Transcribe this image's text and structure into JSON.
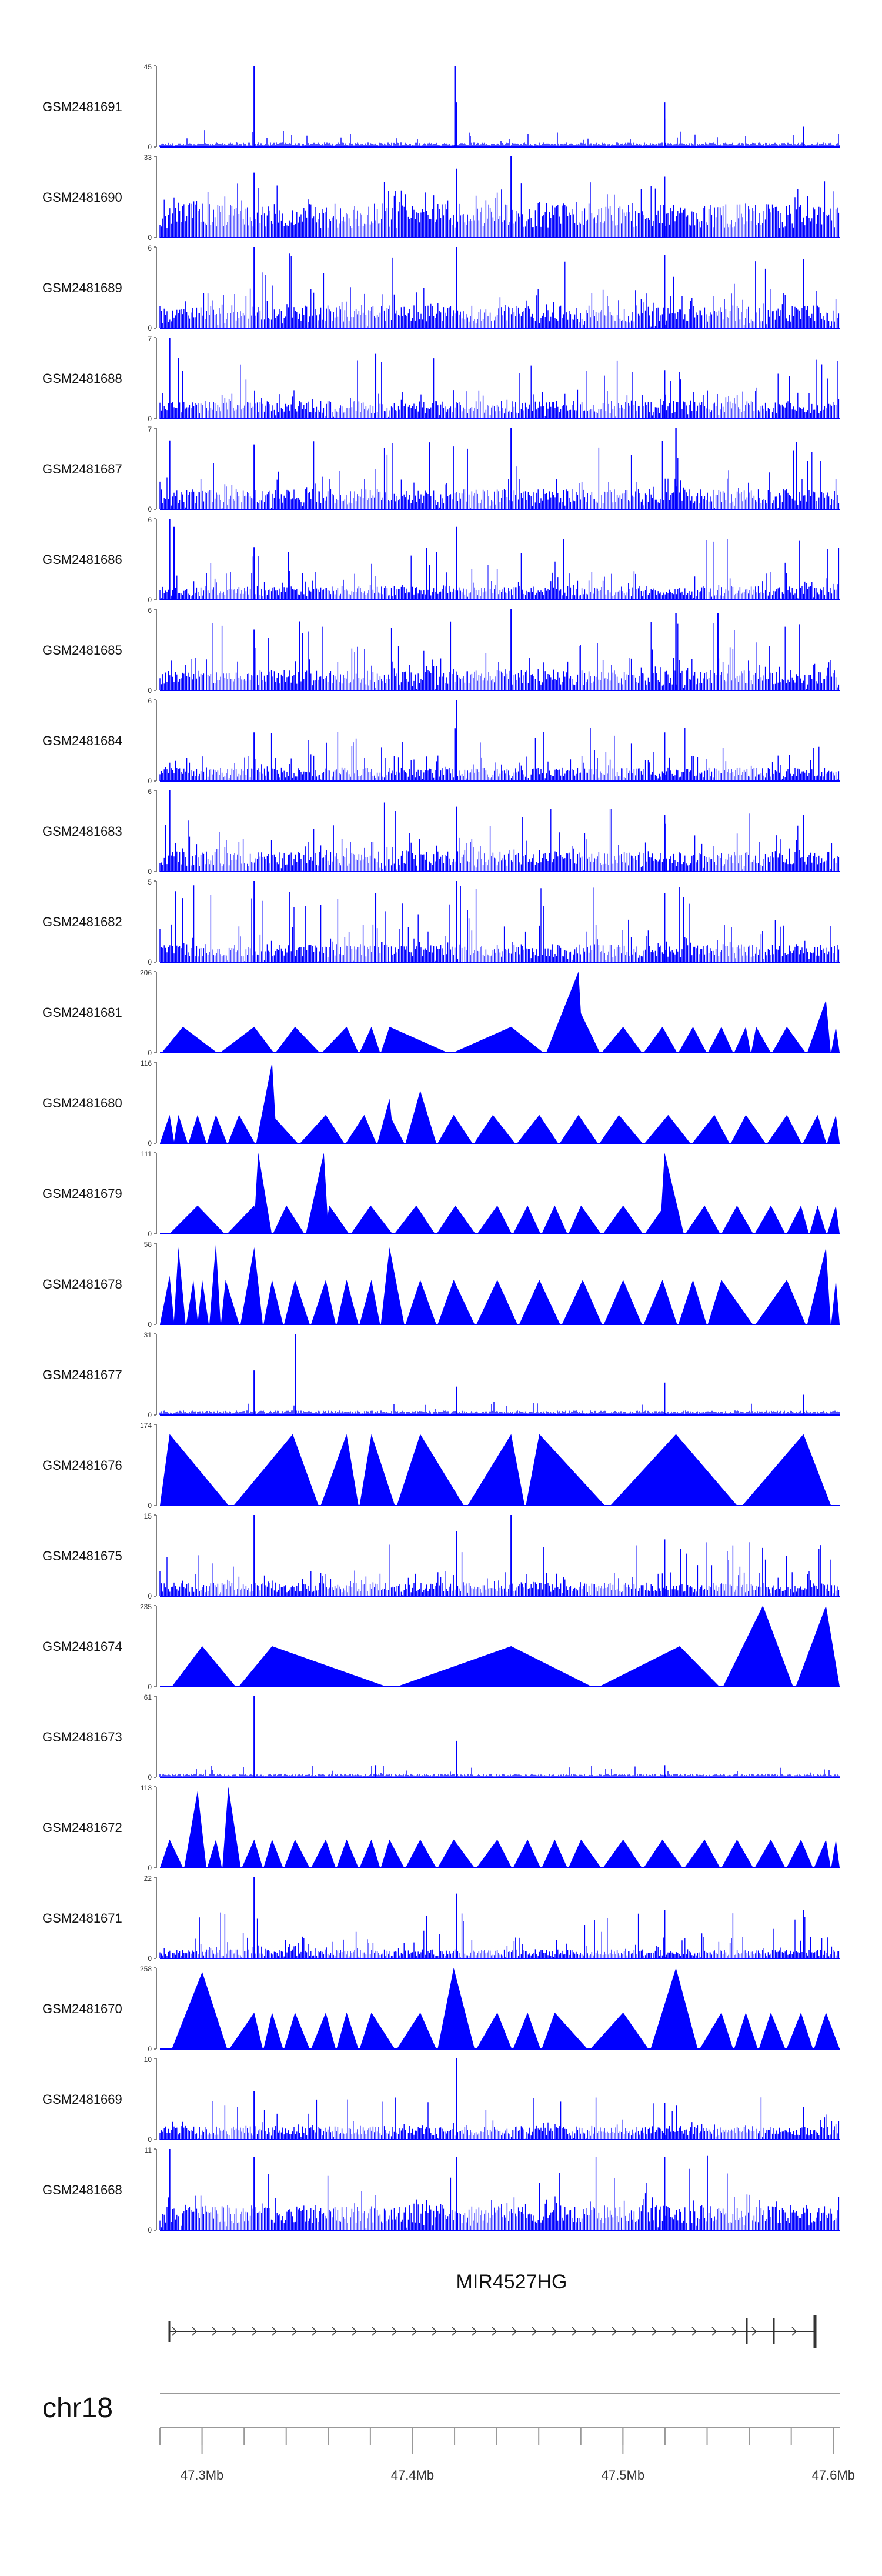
{
  "chart_data": {
    "type": "area",
    "title": "",
    "chromosome": "chr18",
    "gene": "MIR4527HG",
    "xlim": [
      47.28,
      47.603
    ],
    "xlabel": "",
    "x_tick_labels": [
      "47.3Mb",
      "47.4Mb",
      "47.5Mb",
      "47.6Mb"
    ],
    "x_ticks": [
      47.3,
      47.4,
      47.5,
      47.6
    ],
    "fill_color": "#0000ff",
    "tracks": [
      {
        "name": "GSM2481691",
        "ymax": "45",
        "ymax_value": 45,
        "style": "sparse",
        "background": 0.04,
        "noise": 0.1,
        "peaks": [
          [
            47.3248,
            1.0
          ],
          [
            47.4202,
            1.0
          ],
          [
            47.4209,
            0.55
          ],
          [
            47.5198,
            0.55
          ],
          [
            47.5198,
            0.35
          ],
          [
            47.5858,
            0.25
          ]
        ]
      },
      {
        "name": "GSM2481690",
        "ymax": "33",
        "ymax_value": 33,
        "style": "spiky",
        "background": 0.3,
        "noise": 0.45,
        "peaks": [
          [
            47.4469,
            1.0
          ],
          [
            47.4209,
            0.85
          ],
          [
            47.3248,
            0.8
          ],
          [
            47.5198,
            0.75
          ]
        ]
      },
      {
        "name": "GSM2481689",
        "ymax": "6",
        "ymax_value": 6,
        "style": "dense",
        "background": 0.2,
        "noise": 0.5,
        "peaks": [
          [
            47.3248,
            1.0
          ],
          [
            47.4209,
            1.0
          ],
          [
            47.5198,
            0.9
          ],
          [
            47.5858,
            0.85
          ]
        ]
      },
      {
        "name": "GSM2481688",
        "ymax": "7",
        "ymax_value": 7,
        "style": "dense",
        "background": 0.16,
        "noise": 0.4,
        "peaks": [
          [
            47.2846,
            1.0
          ],
          [
            47.2888,
            0.75
          ],
          [
            47.3825,
            0.8
          ],
          [
            47.5198,
            0.6
          ]
        ]
      },
      {
        "name": "GSM2481687",
        "ymax": "7",
        "ymax_value": 7,
        "style": "dense",
        "background": 0.18,
        "noise": 0.45,
        "peaks": [
          [
            47.4469,
            1.0
          ],
          [
            47.5252,
            1.0
          ],
          [
            47.2846,
            0.85
          ],
          [
            47.3248,
            0.8
          ]
        ]
      },
      {
        "name": "GSM2481686",
        "ymax": "6",
        "ymax_value": 6,
        "style": "dense",
        "background": 0.12,
        "noise": 0.4,
        "peaks": [
          [
            47.2846,
            1.0
          ],
          [
            47.2867,
            0.9
          ],
          [
            47.4209,
            0.9
          ],
          [
            47.3248,
            0.65
          ]
        ]
      },
      {
        "name": "GSM2481685",
        "ymax": "6",
        "ymax_value": 6,
        "style": "dense",
        "background": 0.18,
        "noise": 0.45,
        "peaks": [
          [
            47.4469,
            1.0
          ],
          [
            47.5252,
            0.95
          ],
          [
            47.5451,
            0.95
          ],
          [
            47.3248,
            0.75
          ]
        ]
      },
      {
        "name": "GSM2481684",
        "ymax": "6",
        "ymax_value": 6,
        "style": "dense",
        "background": 0.12,
        "noise": 0.35,
        "peaks": [
          [
            47.4209,
            1.0
          ],
          [
            47.4202,
            0.65
          ],
          [
            47.3248,
            0.6
          ],
          [
            47.5198,
            0.6
          ]
        ]
      },
      {
        "name": "GSM2481683",
        "ymax": "6",
        "ymax_value": 6,
        "style": "dense",
        "background": 0.18,
        "noise": 0.45,
        "peaks": [
          [
            47.2846,
            1.0
          ],
          [
            47.4209,
            0.8
          ],
          [
            47.5198,
            0.7
          ],
          [
            47.5858,
            0.7
          ]
        ]
      },
      {
        "name": "GSM2481682",
        "ymax": "5",
        "ymax_value": 5,
        "style": "dense",
        "background": 0.16,
        "noise": 0.55,
        "peaks": [
          [
            47.3248,
            1.0
          ],
          [
            47.4209,
            1.0
          ],
          [
            47.3825,
            0.85
          ],
          [
            47.5198,
            0.85
          ]
        ]
      },
      {
        "name": "GSM2481681",
        "ymax": "206",
        "ymax_value": 206,
        "style": "triangle",
        "peaks": [
          [
            47.2909,
            0.32
          ],
          [
            47.3248,
            0.32
          ],
          [
            47.3442,
            0.32
          ],
          [
            47.3687,
            0.32
          ],
          [
            47.3805,
            0.32
          ],
          [
            47.3891,
            0.32
          ],
          [
            47.4469,
            0.32
          ],
          [
            47.4789,
            1.0
          ],
          [
            47.4789,
            0.55
          ],
          [
            47.5001,
            0.32
          ],
          [
            47.5188,
            0.32
          ],
          [
            47.5333,
            0.32
          ],
          [
            47.5468,
            0.32
          ],
          [
            47.5584,
            0.32
          ],
          [
            47.5633,
            0.32
          ],
          [
            47.5779,
            0.32
          ],
          [
            47.5965,
            0.65
          ],
          [
            47.6012,
            0.32
          ]
        ]
      },
      {
        "name": "GSM2481680",
        "ymax": "116",
        "ymax_value": 116,
        "style": "triangle",
        "peaks": [
          [
            47.2846,
            0.35
          ],
          [
            47.2888,
            0.35
          ],
          [
            47.2979,
            0.35
          ],
          [
            47.3066,
            0.35
          ],
          [
            47.3176,
            0.35
          ],
          [
            47.3333,
            1.0
          ],
          [
            47.3333,
            0.35
          ],
          [
            47.3588,
            0.35
          ],
          [
            47.3771,
            0.35
          ],
          [
            47.3891,
            0.55
          ],
          [
            47.3891,
            0.35
          ],
          [
            47.4037,
            0.65
          ],
          [
            47.4196,
            0.35
          ],
          [
            47.4382,
            0.35
          ],
          [
            47.4603,
            0.35
          ],
          [
            47.4789,
            0.35
          ],
          [
            47.4981,
            0.35
          ],
          [
            47.5215,
            0.35
          ],
          [
            47.5435,
            0.35
          ],
          [
            47.5584,
            0.35
          ],
          [
            47.5779,
            0.35
          ],
          [
            47.5925,
            0.35
          ],
          [
            47.6012,
            0.35
          ]
        ]
      },
      {
        "name": "GSM2481679",
        "ymax": "111",
        "ymax_value": 111,
        "style": "triangle",
        "peaks": [
          [
            47.2979,
            0.35
          ],
          [
            47.3248,
            0.35
          ],
          [
            47.3267,
            1.0
          ],
          [
            47.3401,
            0.35
          ],
          [
            47.3579,
            1.0
          ],
          [
            47.3605,
            0.35
          ],
          [
            47.3801,
            0.35
          ],
          [
            47.4018,
            0.35
          ],
          [
            47.4204,
            0.35
          ],
          [
            47.4403,
            0.35
          ],
          [
            47.4547,
            0.35
          ],
          [
            47.4676,
            0.35
          ],
          [
            47.4801,
            0.35
          ],
          [
            47.5001,
            0.35
          ],
          [
            47.5198,
            0.35
          ],
          [
            47.5198,
            1.0
          ],
          [
            47.5388,
            0.35
          ],
          [
            47.5542,
            0.35
          ],
          [
            47.5703,
            0.35
          ],
          [
            47.5846,
            0.35
          ],
          [
            47.5925,
            0.35
          ],
          [
            47.6012,
            0.35
          ]
        ]
      },
      {
        "name": "GSM2481678",
        "ymax": "58",
        "ymax_value": 58,
        "style": "triangle",
        "peaks": [
          [
            47.2846,
            0.6
          ],
          [
            47.2888,
            0.95
          ],
          [
            47.2959,
            0.55
          ],
          [
            47.3001,
            0.55
          ],
          [
            47.3066,
            1.0
          ],
          [
            47.3112,
            0.55
          ],
          [
            47.3248,
            0.95
          ],
          [
            47.3333,
            0.55
          ],
          [
            47.3442,
            0.55
          ],
          [
            47.3588,
            0.55
          ],
          [
            47.3687,
            0.55
          ],
          [
            47.3805,
            0.55
          ],
          [
            47.3891,
            0.95
          ],
          [
            47.4037,
            0.55
          ],
          [
            47.4196,
            0.55
          ],
          [
            47.4403,
            0.55
          ],
          [
            47.4603,
            0.55
          ],
          [
            47.4809,
            0.55
          ],
          [
            47.5001,
            0.55
          ],
          [
            47.5188,
            0.55
          ],
          [
            47.5333,
            0.55
          ],
          [
            47.5468,
            0.55
          ],
          [
            47.5779,
            0.55
          ],
          [
            47.5965,
            0.95
          ],
          [
            47.6012,
            0.55
          ]
        ]
      },
      {
        "name": "GSM2481677",
        "ymax": "31",
        "ymax_value": 31,
        "style": "sparse",
        "background": 0.04,
        "noise": 0.08,
        "peaks": [
          [
            47.3248,
            0.55
          ],
          [
            47.3444,
            1.0
          ],
          [
            47.4209,
            0.35
          ],
          [
            47.5198,
            0.4
          ],
          [
            47.5858,
            0.25
          ]
        ]
      },
      {
        "name": "GSM2481676",
        "ymax": "174",
        "ymax_value": 174,
        "style": "triangle",
        "peaks": [
          [
            47.2846,
            0.88
          ],
          [
            47.3431,
            0.88
          ],
          [
            47.3687,
            0.88
          ],
          [
            47.3805,
            0.88
          ],
          [
            47.4037,
            0.88
          ],
          [
            47.4469,
            0.88
          ],
          [
            47.4603,
            0.88
          ],
          [
            47.5252,
            0.88
          ],
          [
            47.5858,
            0.88
          ]
        ]
      },
      {
        "name": "GSM2481675",
        "ymax": "15",
        "ymax_value": 15,
        "style": "dense",
        "background": 0.12,
        "noise": 0.35,
        "peaks": [
          [
            47.3248,
            1.0
          ],
          [
            47.4469,
            1.0
          ],
          [
            47.4209,
            0.8
          ],
          [
            47.5198,
            0.7
          ]
        ]
      },
      {
        "name": "GSM2481674",
        "ymax": "235",
        "ymax_value": 235,
        "style": "triangle",
        "peaks": [
          [
            47.3001,
            0.5
          ],
          [
            47.3333,
            0.5
          ],
          [
            47.4469,
            0.5
          ],
          [
            47.527,
            0.5
          ],
          [
            47.5665,
            1.0
          ],
          [
            47.5965,
            1.0
          ]
        ]
      },
      {
        "name": "GSM2481673",
        "ymax": "61",
        "ymax_value": 61,
        "style": "sparse",
        "background": 0.03,
        "noise": 0.07,
        "peaks": [
          [
            47.3248,
            1.0
          ],
          [
            47.4209,
            0.45
          ],
          [
            47.3825,
            0.15
          ],
          [
            47.5198,
            0.15
          ]
        ]
      },
      {
        "name": "GSM2481672",
        "ymax": "113",
        "ymax_value": 113,
        "style": "triangle",
        "peaks": [
          [
            47.2846,
            0.35
          ],
          [
            47.2979,
            0.95
          ],
          [
            47.3066,
            0.35
          ],
          [
            47.3125,
            1.0
          ],
          [
            47.3248,
            0.35
          ],
          [
            47.3333,
            0.35
          ],
          [
            47.3442,
            0.35
          ],
          [
            47.3588,
            0.35
          ],
          [
            47.3687,
            0.35
          ],
          [
            47.3805,
            0.35
          ],
          [
            47.3891,
            0.35
          ],
          [
            47.4037,
            0.35
          ],
          [
            47.4196,
            0.35
          ],
          [
            47.4403,
            0.35
          ],
          [
            47.4547,
            0.35
          ],
          [
            47.4676,
            0.35
          ],
          [
            47.4801,
            0.35
          ],
          [
            47.5001,
            0.35
          ],
          [
            47.5188,
            0.35
          ],
          [
            47.5388,
            0.35
          ],
          [
            47.5542,
            0.35
          ],
          [
            47.5703,
            0.35
          ],
          [
            47.5846,
            0.35
          ],
          [
            47.5965,
            0.35
          ],
          [
            47.6012,
            0.35
          ]
        ]
      },
      {
        "name": "GSM2481671",
        "ymax": "22",
        "ymax_value": 22,
        "style": "dense",
        "background": 0.08,
        "noise": 0.3,
        "peaks": [
          [
            47.3248,
            1.0
          ],
          [
            47.4209,
            0.8
          ],
          [
            47.5198,
            0.6
          ],
          [
            47.5858,
            0.6
          ]
        ]
      },
      {
        "name": "GSM2481670",
        "ymax": "258",
        "ymax_value": 258,
        "style": "triangle",
        "peaks": [
          [
            47.3001,
            0.95
          ],
          [
            47.3248,
            0.45
          ],
          [
            47.3333,
            0.45
          ],
          [
            47.3442,
            0.45
          ],
          [
            47.3588,
            0.45
          ],
          [
            47.3687,
            0.45
          ],
          [
            47.3805,
            0.45
          ],
          [
            47.4037,
            0.45
          ],
          [
            47.4196,
            1.0
          ],
          [
            47.4403,
            0.45
          ],
          [
            47.4547,
            0.45
          ],
          [
            47.4676,
            0.45
          ],
          [
            47.5001,
            0.45
          ],
          [
            47.5252,
            1.0
          ],
          [
            47.5468,
            0.45
          ],
          [
            47.5584,
            0.45
          ],
          [
            47.5703,
            0.45
          ],
          [
            47.5846,
            0.45
          ],
          [
            47.5965,
            0.45
          ]
        ]
      },
      {
        "name": "GSM2481669",
        "ymax": "10",
        "ymax_value": 10,
        "style": "dense",
        "background": 0.12,
        "noise": 0.28,
        "peaks": [
          [
            47.4209,
            1.0
          ],
          [
            47.3248,
            0.6
          ],
          [
            47.5198,
            0.45
          ],
          [
            47.5858,
            0.4
          ]
        ]
      },
      {
        "name": "GSM2481668",
        "ymax": "11",
        "ymax_value": 11,
        "style": "dense",
        "background": 0.22,
        "noise": 0.5,
        "peaks": [
          [
            47.2846,
            1.0
          ],
          [
            47.3248,
            0.9
          ],
          [
            47.4209,
            0.9
          ],
          [
            47.5198,
            0.9
          ]
        ]
      }
    ]
  }
}
